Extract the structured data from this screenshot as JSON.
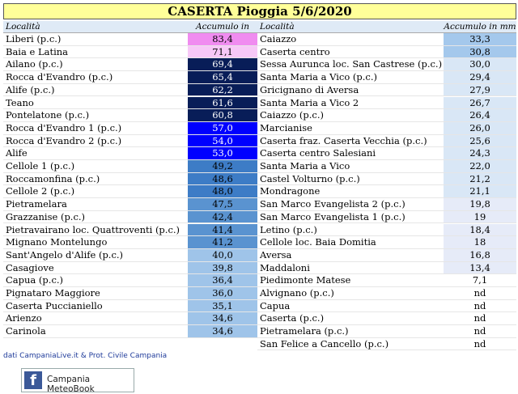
{
  "title": "CASERTA Pioggia 5/6/2020",
  "headers": [
    "Località",
    "Accumulo in mm",
    "Località",
    "Accumulo in mm"
  ],
  "left": [
    {
      "name": "Liberi (p.c.)",
      "value": "83,4",
      "color": "#f08cf0"
    },
    {
      "name": "Baia e Latina",
      "value": "71,1",
      "color": "#f7c8f7"
    },
    {
      "name": "Ailano (p.c.)",
      "value": "69,4",
      "color": "#081d58"
    },
    {
      "name": "Rocca d'Evandro (p.c.)",
      "value": "65,4",
      "color": "#081d58"
    },
    {
      "name": "Alife (p.c.)",
      "value": "62,2",
      "color": "#081d58"
    },
    {
      "name": "Teano",
      "value": "61,6",
      "color": "#081d58"
    },
    {
      "name": "Pontelatone (p.c.)",
      "value": "60,8",
      "color": "#081d58"
    },
    {
      "name": "Rocca d'Evandro 1 (p.c.)",
      "value": "57,0",
      "color": "#0000ff"
    },
    {
      "name": "Rocca d'Evandro 2 (p.c.)",
      "value": "54,0",
      "color": "#0000ff"
    },
    {
      "name": "Alife",
      "value": "53,0",
      "color": "#0000ff"
    },
    {
      "name": "Cellole 1 (p.c.)",
      "value": "49,2",
      "color": "#3d7cc6"
    },
    {
      "name": "Roccamonfina (p.c.)",
      "value": "48,6",
      "color": "#3d7cc6"
    },
    {
      "name": "Cellole 2 (p.c.)",
      "value": "48,0",
      "color": "#3d7cc6"
    },
    {
      "name": "Pietramelara",
      "value": "47,5",
      "color": "#5a93d0"
    },
    {
      "name": "Grazzanise (p.c.)",
      "value": "42,4",
      "color": "#5a93d0"
    },
    {
      "name": "Pietravairano loc. Quattroventi (p.c.)",
      "value": "41,4",
      "color": "#5a93d0"
    },
    {
      "name": "Mignano Montelungo",
      "value": "41,2",
      "color": "#5a93d0"
    },
    {
      "name": "Sant'Angelo d'Alife (p.c.)",
      "value": "40,0",
      "color": "#9fc4e9"
    },
    {
      "name": "Casagiove",
      "value": "39,8",
      "color": "#9fc4e9"
    },
    {
      "name": "Capua (p.c.)",
      "value": "36,4",
      "color": "#9fc4e9"
    },
    {
      "name": "Pignataro Maggiore",
      "value": "36,0",
      "color": "#9fc4e9"
    },
    {
      "name": "Caserta Puccianiello",
      "value": "35,1",
      "color": "#9fc4e9"
    },
    {
      "name": "Arienzo",
      "value": "34,6",
      "color": "#9fc4e9"
    },
    {
      "name": "Carinola",
      "value": "34,6",
      "color": "#9fc4e9"
    }
  ],
  "right": [
    {
      "name": "Caiazzo",
      "value": "33,3",
      "color": "#a4c8ec"
    },
    {
      "name": "Caserta centro",
      "value": "30,8",
      "color": "#a4c8ec"
    },
    {
      "name": "Sessa Aurunca loc. San Castrese (p.c.)",
      "value": "30,0",
      "color": "#d9e7f6"
    },
    {
      "name": "Santa Maria a Vico (p.c.)",
      "value": "29,4",
      "color": "#d9e7f6"
    },
    {
      "name": "Gricignano di Aversa",
      "value": "27,9",
      "color": "#d9e7f6"
    },
    {
      "name": "Santa Maria a Vico 2",
      "value": "26,7",
      "color": "#d9e7f6"
    },
    {
      "name": "Caiazzo (p.c.)",
      "value": "26,4",
      "color": "#d9e7f6"
    },
    {
      "name": "Marcianise",
      "value": "26,0",
      "color": "#d9e7f6"
    },
    {
      "name": "Caserta fraz. Caserta Vecchia (p.c.)",
      "value": "25,6",
      "color": "#d9e7f6"
    },
    {
      "name": "Caserta centro Salesiani",
      "value": "24,3",
      "color": "#d9e7f6"
    },
    {
      "name": "Santa Maria a Vico",
      "value": "22,0",
      "color": "#d9e7f6"
    },
    {
      "name": "Castel Volturno (p.c.)",
      "value": "21,2",
      "color": "#d9e7f6"
    },
    {
      "name": "Mondragone",
      "value": "21,1",
      "color": "#d9e7f6"
    },
    {
      "name": "San Marco Evangelista 2 (p.c.)",
      "value": "19,8",
      "color": "#e6ebf8"
    },
    {
      "name": "San Marco Evangelista 1 (p.c.)",
      "value": "19",
      "color": "#e6ebf8"
    },
    {
      "name": "Letino (p.c.)",
      "value": "18,4",
      "color": "#e6ebf8"
    },
    {
      "name": "Cellole loc. Baia Domitia",
      "value": "18",
      "color": "#e6ebf8"
    },
    {
      "name": "Aversa",
      "value": "16,8",
      "color": "#e6ebf8"
    },
    {
      "name": "Maddaloni",
      "value": "13,4",
      "color": "#e6ebf8"
    },
    {
      "name": "Piedimonte Matese",
      "value": "7,1",
      "color": "#ffffff"
    },
    {
      "name": "Alvignano (p.c.)",
      "value": "nd",
      "color": "#ffffff"
    },
    {
      "name": "Capua",
      "value": "nd",
      "color": "#ffffff"
    },
    {
      "name": "Caserta (p.c.)",
      "value": "nd",
      "color": "#ffffff"
    },
    {
      "name": "Pietramelara (p.c.)",
      "value": "nd",
      "color": "#ffffff"
    },
    {
      "name": "San Felice a Cancello (p.c.)",
      "value": "nd",
      "color": "#ffffff"
    }
  ],
  "footer": "dati CampaniaLive.it & Prot. Civile Campania",
  "facebook": "Campania MeteoBook"
}
